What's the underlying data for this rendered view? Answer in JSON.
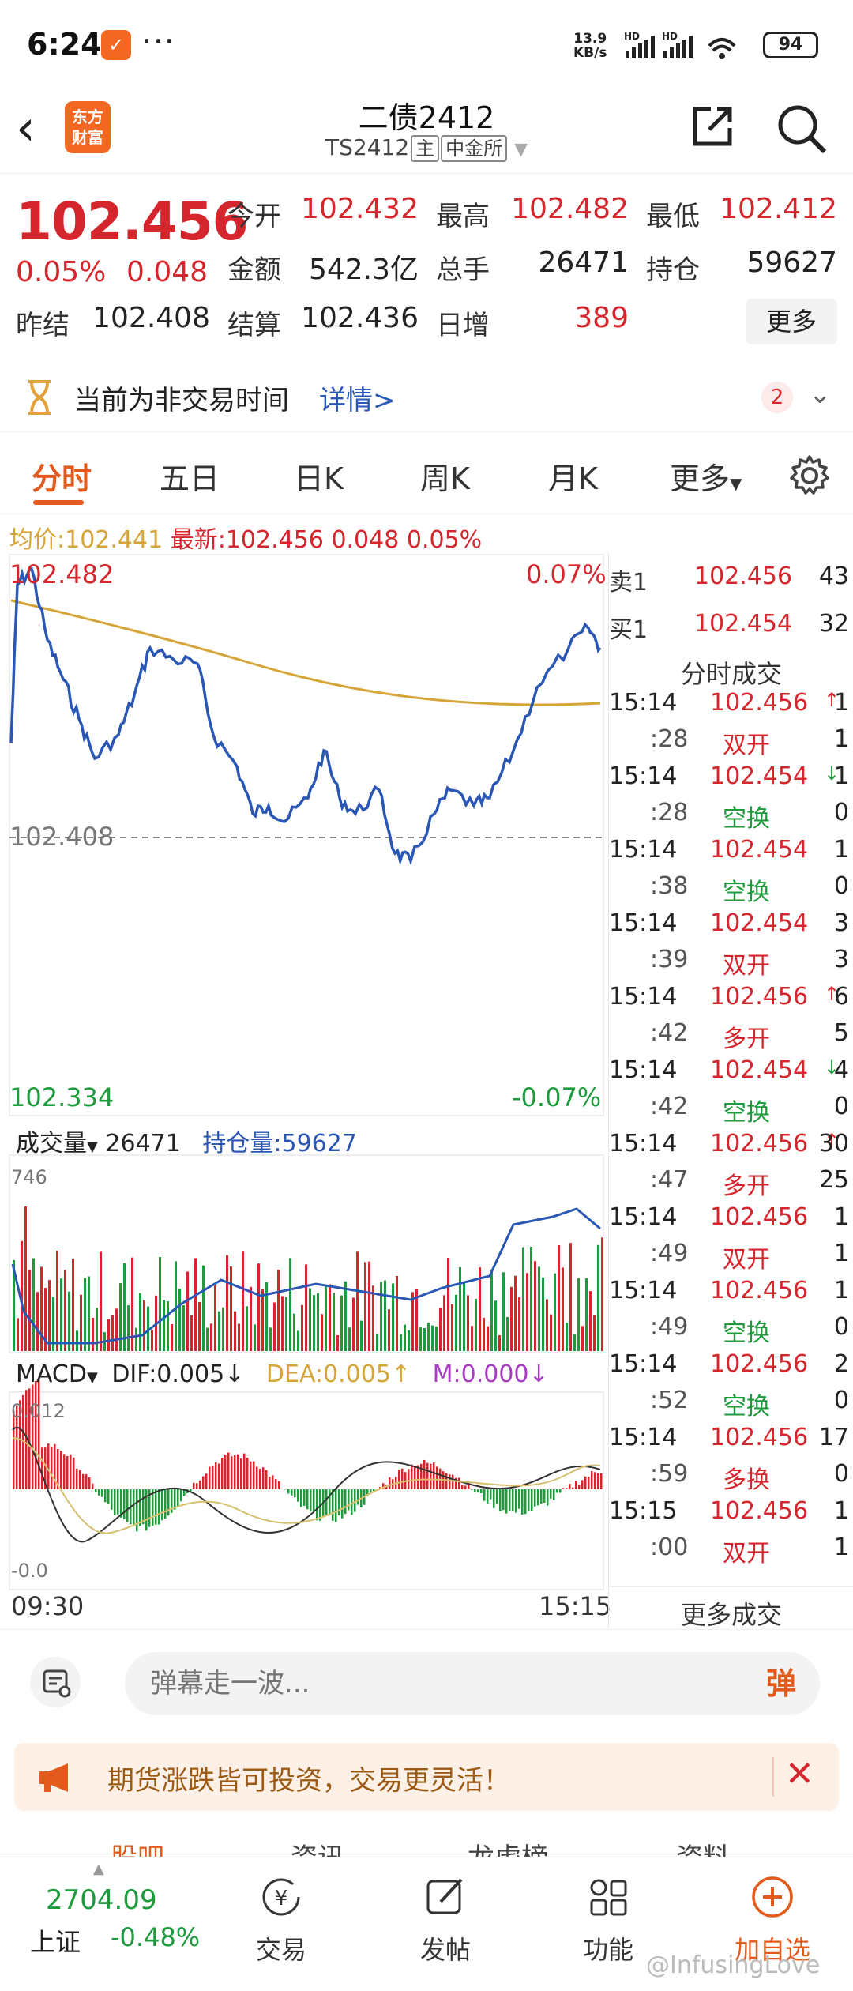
{
  "status_bar": {
    "time": "6:24",
    "dots": "···",
    "net_speed": "13.9",
    "net_unit": "KB/s",
    "battery": "94"
  },
  "header": {
    "brand_line1": "东方",
    "brand_line2": "财富",
    "title": "二债2412",
    "code": "TS2412",
    "tag_main": "主",
    "exchange": "中金所"
  },
  "quote": {
    "price": "102.456",
    "change_pct": "0.05%",
    "change_abs": "0.048",
    "fields": [
      {
        "label": "今开",
        "value": "102.432",
        "color": "red"
      },
      {
        "label": "最高",
        "value": "102.482",
        "color": "red"
      },
      {
        "label": "最低",
        "value": "102.412",
        "color": "red"
      },
      {
        "label": "金额",
        "value": "542.3亿",
        "color": "dark"
      },
      {
        "label": "总手",
        "value": "26471",
        "color": "dark"
      },
      {
        "label": "持仓",
        "value": "59627",
        "color": "dark"
      },
      {
        "label": "结算",
        "value": "102.436",
        "color": "dark"
      },
      {
        "label": "日增",
        "value": "389",
        "color": "red"
      }
    ],
    "prev_label": "昨结",
    "prev_value": "102.408",
    "more_label": "更多"
  },
  "notice": {
    "text": "当前为非交易时间",
    "detail": "详情>",
    "count": "2"
  },
  "tabs": [
    "分时",
    "五日",
    "日K",
    "周K",
    "月K",
    "更多"
  ],
  "avg_line": {
    "avg_label": "均价:",
    "avg_value": "102.441",
    "latest_label": "最新:",
    "latest_value": "102.456",
    "latest_change": "0.048",
    "latest_pct": "0.05%"
  },
  "price_chart": {
    "high": "102.482",
    "high_pct": "0.07%",
    "base": "102.408",
    "low": "102.334",
    "low_pct": "-0.07%"
  },
  "volume_panel": {
    "vol_label": "成交量",
    "vol_value": "26471",
    "oi_label": "持仓量:59627",
    "max_label": "746"
  },
  "macd_panel": {
    "label": "MACD",
    "dif": "DIF:0.005",
    "dea": "DEA:0.005",
    "m": "M:0.000",
    "top_label": "0.012",
    "bottom_label": "-0.0",
    "time_start": "09:30",
    "time_end": "15:15"
  },
  "order_book": {
    "ask": {
      "label": "卖1",
      "price": "102.456",
      "vol": "43"
    },
    "bid": {
      "label": "买1",
      "price": "102.454",
      "vol": "32"
    },
    "trades_title": "分时成交",
    "trades": [
      {
        "time": "15:14",
        "price": "102.456",
        "dir": "up",
        "vol": "1",
        "sec": ":28",
        "type": "双开",
        "type_color": "red",
        "oi": "1"
      },
      {
        "time": "15:14",
        "price": "102.454",
        "dir": "down",
        "vol": "1",
        "sec": ":28",
        "type": "空换",
        "type_color": "green",
        "oi": "0"
      },
      {
        "time": "15:14",
        "price": "102.454",
        "dir": "",
        "vol": "1",
        "sec": ":38",
        "type": "空换",
        "type_color": "green",
        "oi": "0"
      },
      {
        "time": "15:14",
        "price": "102.454",
        "dir": "",
        "vol": "3",
        "sec": ":39",
        "type": "双开",
        "type_color": "red",
        "oi": "3"
      },
      {
        "time": "15:14",
        "price": "102.456",
        "dir": "up",
        "vol": "6",
        "sec": ":42",
        "type": "多开",
        "type_color": "red",
        "oi": "5"
      },
      {
        "time": "15:14",
        "price": "102.454",
        "dir": "down",
        "vol": "4",
        "sec": ":42",
        "type": "空换",
        "type_color": "green",
        "oi": "0"
      },
      {
        "time": "15:14",
        "price": "102.456",
        "dir": "up",
        "vol": "30",
        "sec": ":47",
        "type": "多开",
        "type_color": "red",
        "oi": "25"
      },
      {
        "time": "15:14",
        "price": "102.456",
        "dir": "",
        "vol": "1",
        "sec": ":49",
        "type": "双开",
        "type_color": "red",
        "oi": "1"
      },
      {
        "time": "15:14",
        "price": "102.456",
        "dir": "",
        "vol": "1",
        "sec": ":49",
        "type": "空换",
        "type_color": "green",
        "oi": "0"
      },
      {
        "time": "15:14",
        "price": "102.456",
        "dir": "",
        "vol": "2",
        "sec": ":52",
        "type": "空换",
        "type_color": "green",
        "oi": "0"
      },
      {
        "time": "15:14",
        "price": "102.456",
        "dir": "",
        "vol": "17",
        "sec": ":59",
        "type": "多换",
        "type_color": "red",
        "oi": "0"
      },
      {
        "time": "15:15",
        "price": "102.456",
        "dir": "",
        "vol": "1",
        "sec": ":00",
        "type": "双开",
        "type_color": "red",
        "oi": "1"
      }
    ],
    "more_trades": "更多成交"
  },
  "comment": {
    "placeholder": "弹幕走一波...",
    "danmu": "弹"
  },
  "promo": {
    "text": "期货涨跌皆可投资，交易更灵活！"
  },
  "under_tabs": [
    "股吧",
    "资讯",
    "龙虎榜",
    "资料"
  ],
  "bottom_nav": {
    "index_value": "2704.09",
    "index_name": "上证",
    "index_change": "-0.48%",
    "items": [
      {
        "label": "交易",
        "icon": "trade-icon"
      },
      {
        "label": "发帖",
        "icon": "post-icon"
      },
      {
        "label": "功能",
        "icon": "apps-icon"
      },
      {
        "label": "加自选",
        "icon": "add-watch-icon"
      }
    ]
  },
  "watermark": "@InfusingLove",
  "colors": {
    "up": "#d6262d",
    "down": "#1e9b3c",
    "price_line": "#2a56b4",
    "avg_line": "#d6a53a",
    "accent": "#e25a1c"
  }
}
